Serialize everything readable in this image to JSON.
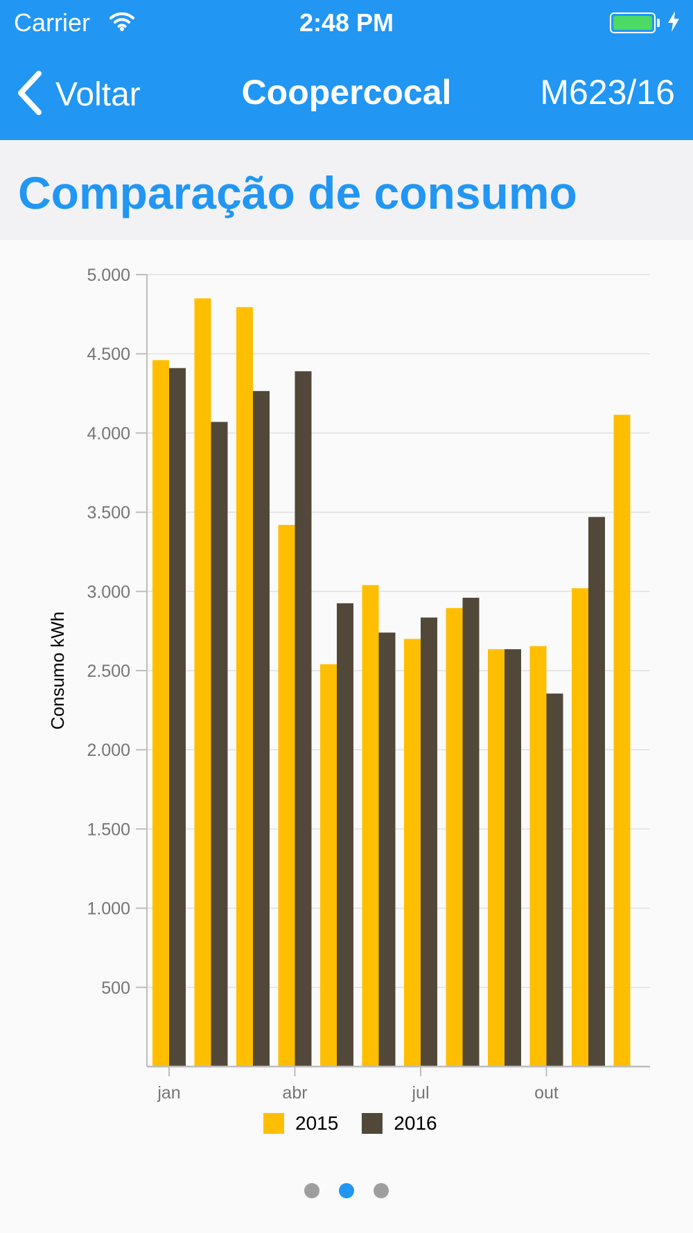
{
  "status_bar": {
    "carrier": "Carrier",
    "time": "2:48 PM",
    "battery_color": "#4cd964"
  },
  "nav": {
    "back_label": "Voltar",
    "title": "Coopercocal",
    "right_label": "M623/16",
    "bar_color": "#2196f3"
  },
  "section": {
    "title": "Comparação de consumo"
  },
  "chart_data": {
    "type": "bar",
    "ylabel": "Consumo kWh",
    "ylim": [
      0,
      5000
    ],
    "y_ticks": [
      500,
      1000,
      1500,
      2000,
      2500,
      3000,
      3500,
      4000,
      4500,
      5000
    ],
    "y_tick_labels": [
      "500",
      "1.000",
      "1.500",
      "2.000",
      "2.500",
      "3.000",
      "3.500",
      "4.000",
      "4.500",
      "5.000"
    ],
    "x_tick_labels": [
      {
        "index": 0,
        "label": "jan"
      },
      {
        "index": 3,
        "label": "abr"
      },
      {
        "index": 6,
        "label": "jul"
      },
      {
        "index": 9,
        "label": "out"
      }
    ],
    "grid": true,
    "legend_position": "bottom-center",
    "series": [
      {
        "name": "2015",
        "color": "#ffbf00",
        "values": [
          4460,
          4850,
          4795,
          3420,
          2540,
          3040,
          2700,
          2895,
          2635,
          2655,
          3020,
          4115
        ]
      },
      {
        "name": "2016",
        "color": "#52483a",
        "values": [
          4410,
          4070,
          4265,
          4390,
          2925,
          2740,
          2835,
          2960,
          2635,
          2355,
          3470,
          null
        ]
      }
    ]
  },
  "pager": {
    "count": 3,
    "active_index": 1
  }
}
